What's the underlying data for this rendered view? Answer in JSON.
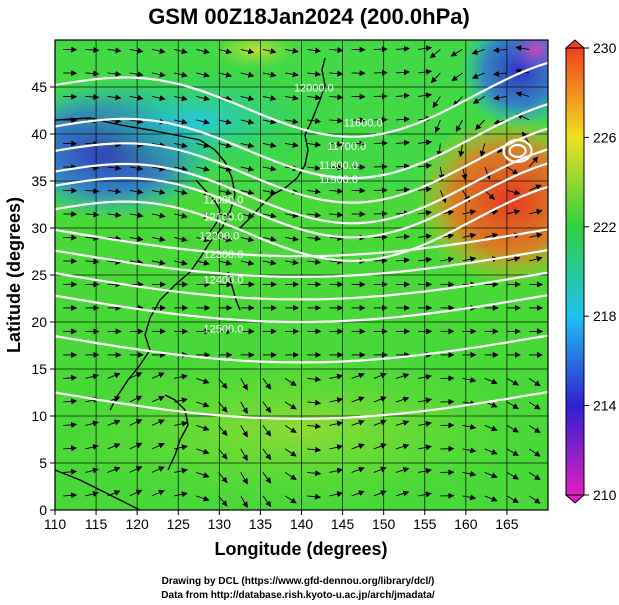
{
  "title": "GSM 00Z18Jan2024 (200.0hPa)",
  "xlabel": "Longitude (degrees)",
  "ylabel": "Latitude  (degrees)",
  "credit_line1": "Drawing by DCL (https://www.gfd-dennou.org/library/dcl/)",
  "credit_line2": "Data from http://database.rish.kyoto-u.ac.jp/arch/jmadata/",
  "chart_data": {
    "type": "heatmap",
    "title": "GSM 00Z18Jan2024 (200.0hPa)",
    "xlabel": "Longitude (degrees)",
    "ylabel": "Latitude  (degrees)",
    "xlim": [
      110,
      170
    ],
    "ylim": [
      0,
      50
    ],
    "xticks": [
      "110",
      "115",
      "120",
      "125",
      "130",
      "135",
      "140",
      "145",
      "150",
      "155",
      "160",
      "165"
    ],
    "yticks": [
      "0",
      "5",
      "10",
      "15",
      "20",
      "25",
      "30",
      "35",
      "40",
      "45"
    ],
    "grid": true,
    "colorbar": {
      "range": [
        210,
        230
      ],
      "ticks": [
        "210",
        "214",
        "218",
        "222",
        "226",
        "230"
      ],
      "stops": [
        "#e020c0",
        "#3020d0",
        "#20c0f0",
        "#30d040",
        "#f0e020",
        "#f04020"
      ]
    },
    "contour_labels": [
      {
        "text": "12000.0",
        "lon": 141.5,
        "lat": 44.5
      },
      {
        "text": "11600.0",
        "lon": 147.5,
        "lat": 40.8
      },
      {
        "text": "11700.0",
        "lon": 145.5,
        "lat": 38.3
      },
      {
        "text": "11800.0",
        "lon": 144.5,
        "lat": 36.3
      },
      {
        "text": "11900.0",
        "lon": 144.5,
        "lat": 34.8
      },
      {
        "text": "12000.0",
        "lon": 130.5,
        "lat": 32.6
      },
      {
        "text": "12100.0",
        "lon": 130.5,
        "lat": 30.8
      },
      {
        "text": "12200.0",
        "lon": 130.0,
        "lat": 28.8
      },
      {
        "text": "12300.0",
        "lon": 130.5,
        "lat": 26.8
      },
      {
        "text": "12400.0",
        "lon": 130.5,
        "lat": 24.1
      },
      {
        "text": "12500.0",
        "lon": 130.5,
        "lat": 18.9
      }
    ]
  }
}
